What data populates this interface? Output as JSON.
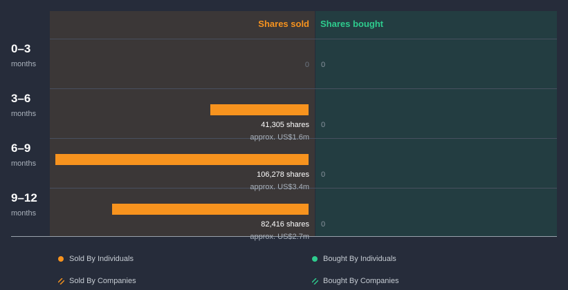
{
  "chart_data": {
    "type": "bar",
    "orientation": "horizontal",
    "headers": {
      "sold": "Shares sold",
      "bought": "Shares bought"
    },
    "categories": [
      {
        "period": "0–3",
        "unit": "months"
      },
      {
        "period": "3–6",
        "unit": "months"
      },
      {
        "period": "6–9",
        "unit": "months"
      },
      {
        "period": "9–12",
        "unit": "months"
      }
    ],
    "sold": [
      {
        "value": 0,
        "label": "0",
        "shares_text": "",
        "approx_text": ""
      },
      {
        "value": 41305,
        "label": "",
        "shares_text": "41,305 shares",
        "approx_text": "approx. US$1.6m"
      },
      {
        "value": 106278,
        "label": "",
        "shares_text": "106,278 shares",
        "approx_text": "approx. US$3.4m"
      },
      {
        "value": 82416,
        "label": "",
        "shares_text": "82,416 shares",
        "approx_text": "approx. US$2.7m"
      }
    ],
    "bought": [
      {
        "value": 0,
        "label": "0"
      },
      {
        "value": 0,
        "label": "0"
      },
      {
        "value": 0,
        "label": "0"
      },
      {
        "value": 0,
        "label": "0"
      }
    ],
    "legend": [
      {
        "label": "Sold By Individuals",
        "marker": "dot",
        "color": "#f7931e"
      },
      {
        "label": "Bought By Individuals",
        "marker": "dot",
        "color": "#2ecc8e"
      },
      {
        "label": "Sold By Companies",
        "marker": "hatch",
        "color": "#f7931e"
      },
      {
        "label": "Bought By Companies",
        "marker": "hatch",
        "color": "#2ecc8e"
      }
    ],
    "colors": {
      "sold": "#f7931e",
      "bought": "#2ecc8e"
    }
  }
}
